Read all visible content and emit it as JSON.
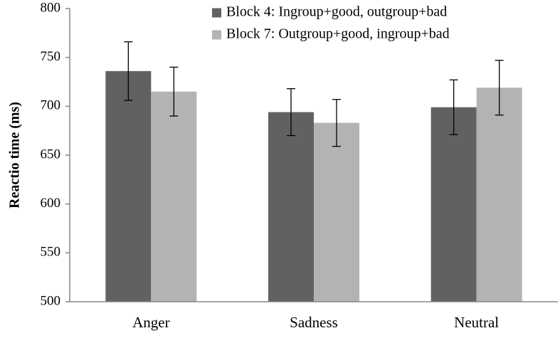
{
  "chart_data": {
    "type": "bar",
    "title": "",
    "xlabel": "",
    "ylabel": "Reactio time (ms)",
    "ylim": [
      500,
      800
    ],
    "yticks": [
      500,
      550,
      600,
      650,
      700,
      750,
      800
    ],
    "categories": [
      "Anger",
      "Sadness",
      "Neutral"
    ],
    "grid": false,
    "legend_position": "top-right",
    "series": [
      {
        "name": "Block 4: Ingroup+good, outgroup+bad",
        "color": "#616161",
        "values": [
          736,
          694,
          699
        ],
        "error": [
          30,
          24,
          28
        ]
      },
      {
        "name": "Block 7: Outgroup+good, ingroup+bad",
        "color": "#b3b3b3",
        "values": [
          715,
          683,
          719
        ],
        "error": [
          25,
          24,
          28
        ]
      }
    ]
  }
}
